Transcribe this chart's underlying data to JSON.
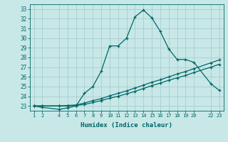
{
  "xlabel": "Humidex (Indice chaleur)",
  "bg_color": "#c8e8e8",
  "grid_color": "#a8cccc",
  "line_color": "#006666",
  "x_ticks": [
    1,
    2,
    4,
    5,
    6,
    7,
    8,
    9,
    10,
    11,
    12,
    13,
    14,
    15,
    16,
    17,
    18,
    19,
    20,
    22,
    23
  ],
  "y_ticks": [
    23,
    24,
    25,
    26,
    27,
    28,
    29,
    30,
    31,
    32,
    33
  ],
  "ylim": [
    22.5,
    33.5
  ],
  "xlim": [
    0.5,
    23.5
  ],
  "series": [
    {
      "x": [
        1,
        2,
        4,
        5,
        6,
        7,
        8,
        9,
        10,
        11,
        12,
        13,
        14,
        15,
        16,
        17,
        18,
        19,
        20,
        22,
        23
      ],
      "y": [
        23.0,
        22.85,
        22.65,
        22.8,
        23.0,
        24.3,
        25.0,
        26.6,
        29.2,
        29.2,
        30.0,
        32.2,
        32.9,
        32.1,
        30.7,
        28.9,
        27.8,
        27.8,
        27.5,
        25.3,
        24.6
      ]
    },
    {
      "x": [
        1,
        2,
        4,
        5,
        6,
        7,
        8,
        9,
        10,
        11,
        12,
        13,
        14,
        15,
        16,
        17,
        18,
        19,
        20,
        22,
        23
      ],
      "y": [
        23.0,
        23.0,
        23.0,
        23.05,
        23.1,
        23.3,
        23.55,
        23.75,
        24.05,
        24.3,
        24.55,
        24.85,
        25.15,
        25.45,
        25.7,
        26.0,
        26.3,
        26.55,
        26.85,
        27.45,
        27.75
      ]
    },
    {
      "x": [
        1,
        2,
        4,
        5,
        6,
        7,
        8,
        9,
        10,
        11,
        12,
        13,
        14,
        15,
        16,
        17,
        18,
        19,
        20,
        22,
        23
      ],
      "y": [
        23.0,
        23.0,
        23.0,
        23.0,
        23.05,
        23.15,
        23.35,
        23.55,
        23.8,
        24.0,
        24.25,
        24.5,
        24.8,
        25.1,
        25.35,
        25.65,
        25.9,
        26.15,
        26.45,
        27.0,
        27.3
      ]
    }
  ]
}
